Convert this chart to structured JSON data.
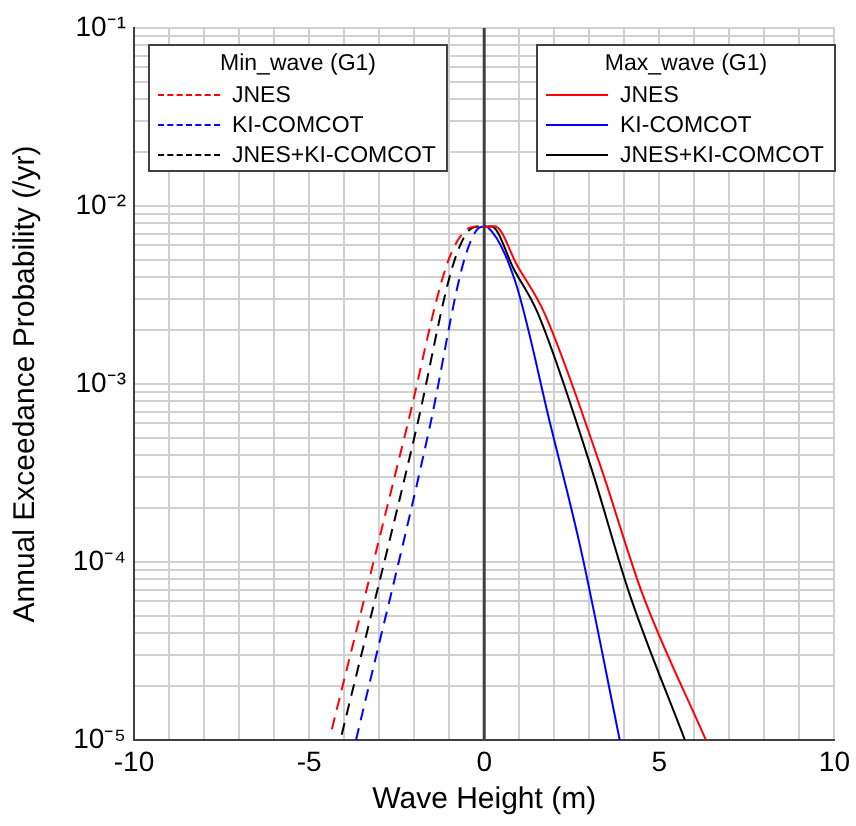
{
  "chart_data": {
    "type": "line",
    "xlabel": "Wave Height (m)",
    "ylabel": "Annual Exceedance Probability (/yr)",
    "legend_title": "Min_wave (G1)",
    "annotations": [
      "Max_wave (G1)"
    ],
    "legend": "top",
    "grid": true,
    "log": "y",
    "marker": "none",
    "xlim": [
      -10,
      10
    ],
    "ylim": [
      1e-05,
      0.1
    ],
    "xticks": [
      -10,
      {
        "value": -9,
        "label": null
      },
      {
        "value": -8,
        "label": null
      },
      {
        "value": -7,
        "label": null
      },
      {
        "value": -6,
        "label": null
      },
      -5,
      {
        "value": -4,
        "label": null
      },
      {
        "value": -3,
        "label": null
      },
      {
        "value": -2,
        "label": null
      },
      {
        "value": -1,
        "label": null
      },
      0,
      {
        "value": 1,
        "label": null
      },
      {
        "value": 2,
        "label": null
      },
      {
        "value": 3,
        "label": null
      },
      {
        "value": 4,
        "label": null
      },
      5,
      {
        "value": 6,
        "label": null
      },
      {
        "value": 7,
        "label": null
      },
      {
        "value": 8,
        "label": null
      },
      {
        "value": 9,
        "label": null
      },
      10
    ],
    "yticks": [
      {
        "value": 1e-05,
        "label": "10⁻⁵"
      },
      {
        "value": 2e-05,
        "label": null
      },
      {
        "value": 3e-05,
        "label": null
      },
      {
        "value": 4e-05,
        "label": null
      },
      {
        "value": 5e-05,
        "label": null
      },
      {
        "value": 6e-05,
        "label": null
      },
      {
        "value": 7e-05,
        "label": null
      },
      {
        "value": 8e-05,
        "label": null
      },
      {
        "value": 9e-05,
        "label": null
      },
      {
        "value": 0.0001,
        "label": "10⁻⁴"
      },
      {
        "value": 0.0002,
        "label": null
      },
      {
        "value": 0.0003,
        "label": null
      },
      {
        "value": 0.0004,
        "label": null
      },
      {
        "value": 0.0005,
        "label": null
      },
      {
        "value": 0.0006,
        "label": null
      },
      {
        "value": 0.0007,
        "label": null
      },
      {
        "value": 0.0008,
        "label": null
      },
      {
        "value": 0.0009,
        "label": null
      },
      {
        "value": 0.001,
        "label": "10⁻³"
      },
      {
        "value": 0.002,
        "label": null
      },
      {
        "value": 0.003,
        "label": null
      },
      {
        "value": 0.004,
        "label": null
      },
      {
        "value": 0.005,
        "label": null
      },
      {
        "value": 0.006,
        "label": null
      },
      {
        "value": 0.007,
        "label": null
      },
      {
        "value": 0.008,
        "label": null
      },
      {
        "value": 0.009,
        "label": null
      },
      {
        "value": 0.01,
        "label": "10⁻²"
      },
      {
        "value": 0.02,
        "label": null
      },
      {
        "value": 0.03,
        "label": null
      },
      {
        "value": 0.04,
        "label": null
      },
      {
        "value": 0.05,
        "label": null
      },
      {
        "value": 0.06,
        "label": null
      },
      {
        "value": 0.07,
        "label": null
      },
      {
        "value": 0.08,
        "label": null
      },
      {
        "value": 0.09,
        "label": null
      },
      {
        "value": 0.1,
        "label": "10⁻¹"
      }
    ],
    "ref_lines": [
      {
        "axis": "x",
        "value": 0,
        "color": "#404040"
      }
    ],
    "series": [
      {
        "name": "JNES",
        "color": "#ff0000",
        "line_style": "dashed",
        "x": [
          -4.35,
          -2.2,
          -1.08,
          -0.5,
          -0.2
        ],
        "values": [
          1.15e-05,
          0.00058,
          0.0046,
          0.0074,
          0.0077
        ]
      },
      {
        "name": "KI-COMCOT",
        "color": "#0000ff",
        "line_style": "dashed",
        "x": [
          -3.66,
          -1.55,
          -0.62,
          -0.2,
          0
        ],
        "values": [
          1e-05,
          0.00058,
          0.0046,
          0.0074,
          0.0077
        ]
      },
      {
        "name": "JNES+KI-COMCOT",
        "color": "#000000",
        "line_style": "dashed",
        "x": [
          -4.07,
          -1.92,
          -0.9,
          -0.4,
          -0.1
        ],
        "values": [
          1.07e-05,
          0.00058,
          0.0046,
          0.0074,
          0.0077
        ]
      },
      {
        "name": "JNES",
        "color": "#ff0000",
        "line_style": "solid",
        "x": [
          0,
          0.3,
          0.95,
          1.72,
          3.31,
          4.52,
          6.33
        ],
        "values": [
          0.0076,
          0.0077,
          0.0046,
          0.0025,
          0.00035,
          6.6e-05,
          1e-05
        ]
      },
      {
        "name": "KI-COMCOT",
        "color": "#0000ff",
        "line_style": "solid",
        "x": [
          0,
          0.1,
          0.88,
          1.9,
          2.75,
          3.87
        ],
        "values": [
          0.0077,
          0.0076,
          0.0038,
          0.00058,
          0.00012,
          1e-05
        ]
      },
      {
        "name": "JNES+KI-COMCOT",
        "color": "#000000",
        "line_style": "solid",
        "x": [
          0,
          0.2,
          0.85,
          1.53,
          3.03,
          4.15,
          5.73
        ],
        "values": [
          0.0076,
          0.0077,
          0.0044,
          0.0025,
          0.00035,
          6.6e-05,
          1e-05
        ]
      }
    ]
  }
}
